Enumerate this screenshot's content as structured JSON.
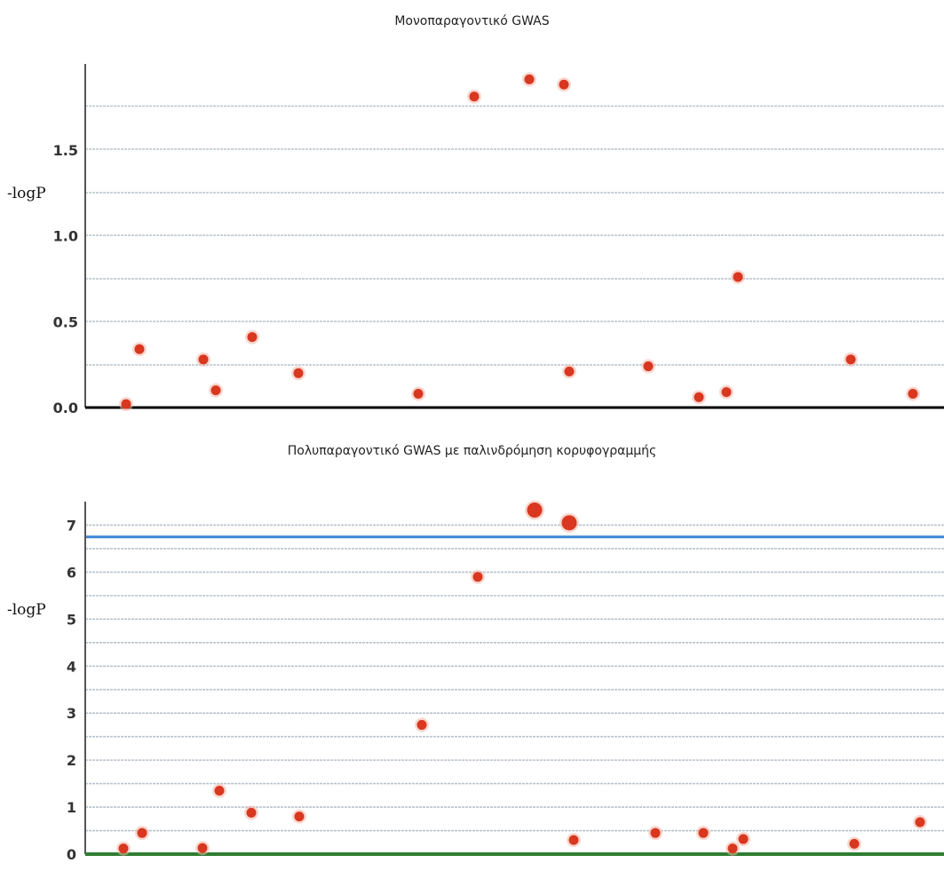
{
  "chart_data": [
    {
      "type": "scatter",
      "title": "Μονοπαραγοντικό GWAS",
      "ylabel": "-logP",
      "xlabel": "",
      "ylim": [
        0,
        2.0
      ],
      "yticks": [
        0.0,
        0.5,
        1.0,
        1.5
      ],
      "ytick_labels": [
        "0.0",
        "0.5",
        "1.0",
        "1.5"
      ],
      "grid": true,
      "marker_color": "#d9371f",
      "axis_color": "#000000",
      "points": [
        {
          "x": 1,
          "y": 0.02
        },
        {
          "x": 2,
          "y": 0.34
        },
        {
          "x": 3,
          "y": 0.28
        },
        {
          "x": 4,
          "y": 0.1
        },
        {
          "x": 5,
          "y": 0.41
        },
        {
          "x": 6,
          "y": 0.2
        },
        {
          "x": 7,
          "y": 0.08
        },
        {
          "x": 8,
          "y": 1.81
        },
        {
          "x": 9,
          "y": 1.91
        },
        {
          "x": 10,
          "y": 1.88
        },
        {
          "x": 11,
          "y": 0.21
        },
        {
          "x": 12,
          "y": 0.24
        },
        {
          "x": 13,
          "y": 0.06
        },
        {
          "x": 14,
          "y": 0.09
        },
        {
          "x": 15,
          "y": 0.76
        },
        {
          "x": 16,
          "y": 0.28
        },
        {
          "x": 17,
          "y": 0.08
        }
      ]
    },
    {
      "type": "scatter",
      "title": "Πολυπαραγοντικό GWAS με παλινδρόμηση κορυφογραμμής",
      "ylabel": "-logP",
      "xlabel": "",
      "ylim": [
        0,
        7.5
      ],
      "yticks": [
        0,
        1,
        2,
        3,
        4,
        5,
        6,
        7
      ],
      "ytick_labels": [
        "0",
        "1",
        "2",
        "3",
        "4",
        "5",
        "6",
        "7"
      ],
      "grid": true,
      "marker_color": "#d9371f",
      "axis_color": "#2e7d32",
      "threshold": 6.75,
      "threshold_color": "#3a86d6",
      "points": [
        {
          "x": 1,
          "y": 0.12,
          "s": 1
        },
        {
          "x": 2,
          "y": 0.45,
          "s": 1
        },
        {
          "x": 3,
          "y": 0.13,
          "s": 1
        },
        {
          "x": 4,
          "y": 1.35,
          "s": 1
        },
        {
          "x": 5,
          "y": 0.88,
          "s": 1
        },
        {
          "x": 6,
          "y": 0.8,
          "s": 1
        },
        {
          "x": 7,
          "y": 2.75,
          "s": 1
        },
        {
          "x": 8,
          "y": 5.9,
          "s": 1
        },
        {
          "x": 9,
          "y": 7.32,
          "s": 2
        },
        {
          "x": 10,
          "y": 7.05,
          "s": 2
        },
        {
          "x": 11,
          "y": 0.3,
          "s": 1
        },
        {
          "x": 12,
          "y": 0.45,
          "s": 1
        },
        {
          "x": 13,
          "y": 0.45,
          "s": 1
        },
        {
          "x": 14,
          "y": 0.12,
          "s": 1
        },
        {
          "x": 15,
          "y": 0.32,
          "s": 1
        },
        {
          "x": 16,
          "y": 0.22,
          "s": 1
        },
        {
          "x": 17,
          "y": 0.68,
          "s": 1
        }
      ]
    }
  ]
}
